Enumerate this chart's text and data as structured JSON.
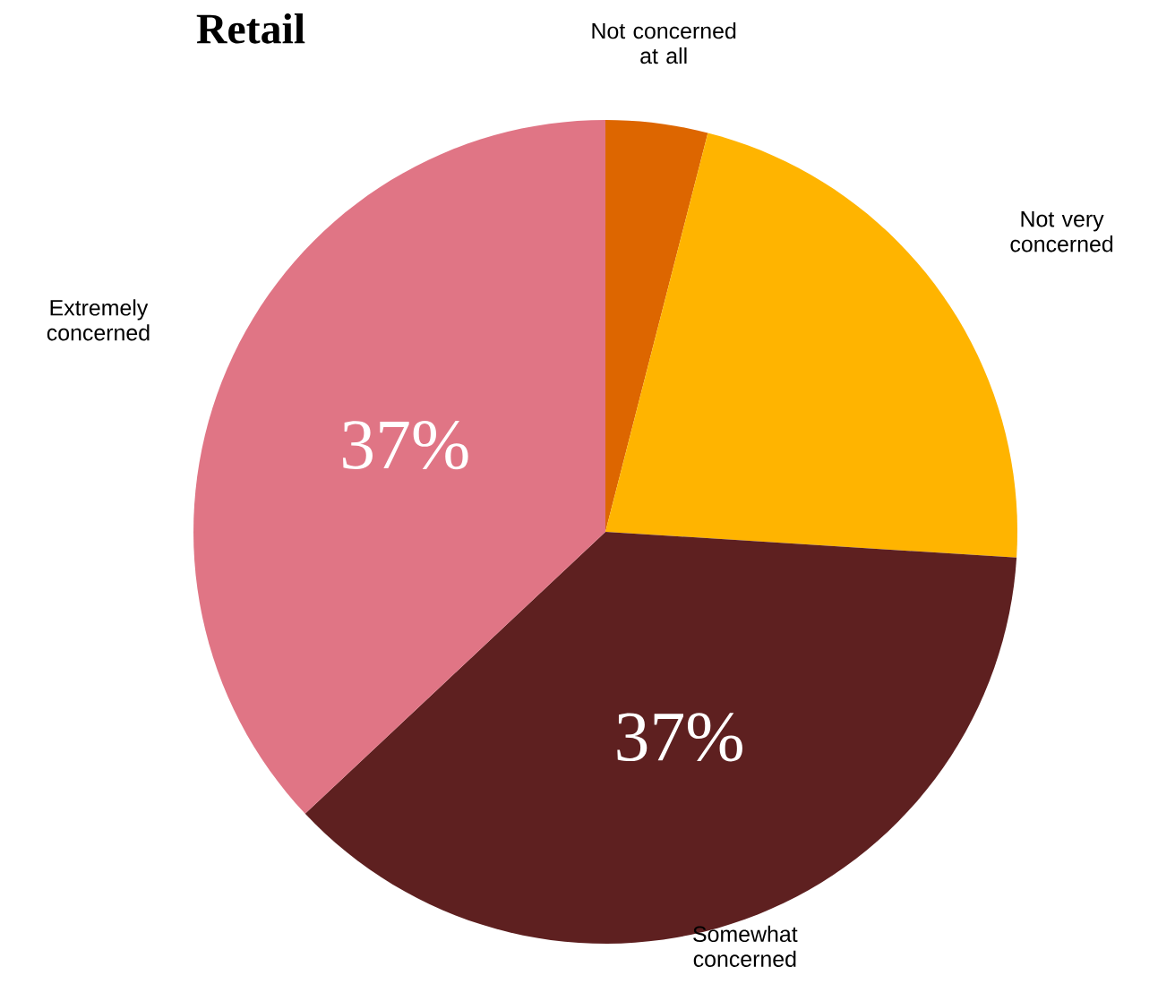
{
  "chart_data": {
    "type": "pie",
    "title": "Retail",
    "categories": [
      "Not concerned at all",
      "Not very concerned",
      "Somewhat concerned",
      "Extremely concerned"
    ],
    "values": [
      4,
      22,
      37,
      37
    ],
    "colors": [
      "#dd6600",
      "#ffb400",
      "#5e2020",
      "#e07585"
    ],
    "value_labels": [
      null,
      null,
      "37%",
      "37%"
    ]
  }
}
